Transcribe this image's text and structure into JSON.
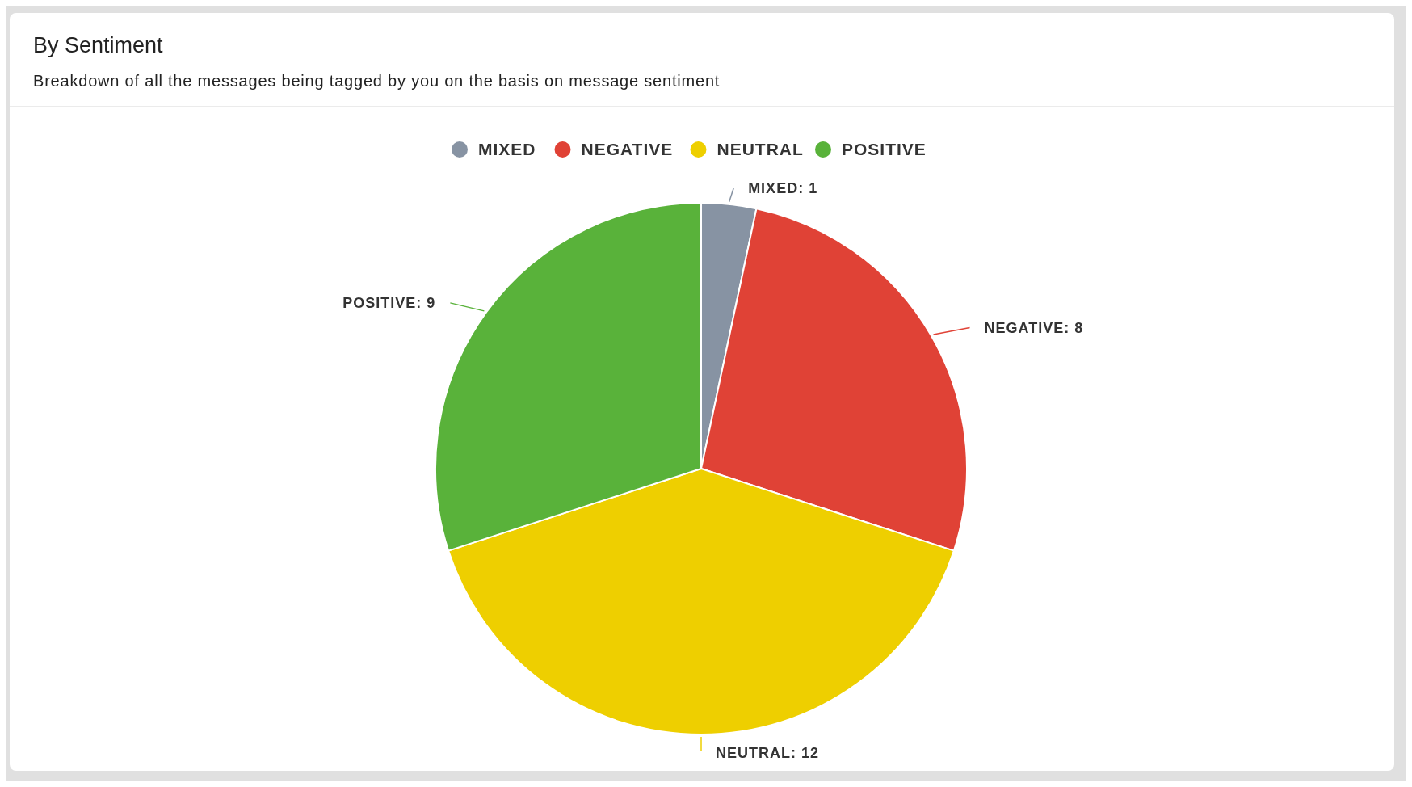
{
  "chart_data": {
    "type": "pie",
    "title": "By Sentiment",
    "subtitle": "Breakdown of all the messages being tagged by you on the basis on message sentiment",
    "categories": [
      "MIXED",
      "NEGATIVE",
      "NEUTRAL",
      "POSITIVE"
    ],
    "values": [
      1,
      8,
      12,
      9
    ],
    "colors": [
      "#8793a3",
      "#e04236",
      "#eecf00",
      "#59b23a"
    ],
    "value_labels": [
      "MIXED: 1",
      "NEGATIVE: 8",
      "NEUTRAL: 12",
      "POSITIVE: 9"
    ],
    "legend": "top"
  }
}
